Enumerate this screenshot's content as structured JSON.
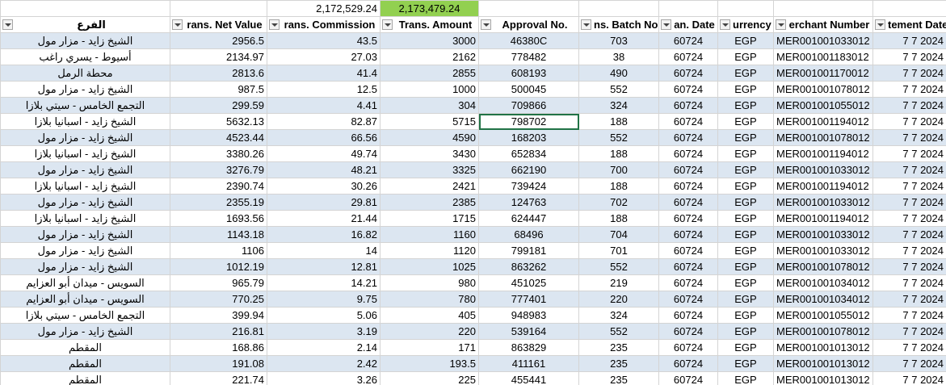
{
  "totals": [
    "2,172,529.24",
    "2,173,479.24"
  ],
  "table": {
    "headers": [
      "الفرع",
      "rans. Net Value",
      "rans. Commission",
      "Trans. Amount",
      "Approval No.",
      "ns. Batch No.",
      "an. Date",
      "urrency",
      "erchant Number",
      "tement Date"
    ],
    "rows": [
      [
        "الشيخ زايد - مزار مول",
        "2956.5",
        "43.5",
        "3000",
        "46380C",
        "703",
        "60724",
        "EGP",
        "MER001001033012",
        "7 7 2024"
      ],
      [
        "أسيوط - يسري راغب",
        "2134.97",
        "27.03",
        "2162",
        "778482",
        "38",
        "60724",
        "EGP",
        "MER001001183012",
        "7 7 2024"
      ],
      [
        "محطة الرمل",
        "2813.6",
        "41.4",
        "2855",
        "608193",
        "490",
        "60724",
        "EGP",
        "MER001001170012",
        "7 7 2024"
      ],
      [
        "الشيخ زايد - مزار مول",
        "987.5",
        "12.5",
        "1000",
        "500045",
        "552",
        "60724",
        "EGP",
        "MER001001078012",
        "7 7 2024"
      ],
      [
        "التجمع الخامس - سيتي بلازا",
        "299.59",
        "4.41",
        "304",
        "709866",
        "324",
        "60724",
        "EGP",
        "MER001001055012",
        "7 7 2024"
      ],
      [
        "الشيخ زايد - اسبانيا بلازا",
        "5632.13",
        "82.87",
        "5715",
        "798702",
        "188",
        "60724",
        "EGP",
        "MER001001194012",
        "7 7 2024"
      ],
      [
        "الشيخ زايد - مزار مول",
        "4523.44",
        "66.56",
        "4590",
        "168203",
        "552",
        "60724",
        "EGP",
        "MER001001078012",
        "7 7 2024"
      ],
      [
        "الشيخ زايد - اسبانيا بلازا",
        "3380.26",
        "49.74",
        "3430",
        "652834",
        "188",
        "60724",
        "EGP",
        "MER001001194012",
        "7 7 2024"
      ],
      [
        "الشيخ زايد - مزار مول",
        "3276.79",
        "48.21",
        "3325",
        "662190",
        "700",
        "60724",
        "EGP",
        "MER001001033012",
        "7 7 2024"
      ],
      [
        "الشيخ زايد - اسبانيا بلازا",
        "2390.74",
        "30.26",
        "2421",
        "739424",
        "188",
        "60724",
        "EGP",
        "MER001001194012",
        "7 7 2024"
      ],
      [
        "الشيخ زايد - مزار مول",
        "2355.19",
        "29.81",
        "2385",
        "124763",
        "702",
        "60724",
        "EGP",
        "MER001001033012",
        "7 7 2024"
      ],
      [
        "الشيخ زايد - اسبانيا بلازا",
        "1693.56",
        "21.44",
        "1715",
        "624447",
        "188",
        "60724",
        "EGP",
        "MER001001194012",
        "7 7 2024"
      ],
      [
        "الشيخ زايد - مزار مول",
        "1143.18",
        "16.82",
        "1160",
        "68496",
        "704",
        "60724",
        "EGP",
        "MER001001033012",
        "7 7 2024"
      ],
      [
        "الشيخ زايد - مزار مول",
        "1106",
        "14",
        "1120",
        "799181",
        "701",
        "60724",
        "EGP",
        "MER001001033012",
        "7 7 2024"
      ],
      [
        "الشيخ زايد - مزار مول",
        "1012.19",
        "12.81",
        "1025",
        "863262",
        "552",
        "60724",
        "EGP",
        "MER001001078012",
        "7 7 2024"
      ],
      [
        "السويس - ميدان أبو العزايم",
        "965.79",
        "14.21",
        "980",
        "451025",
        "219",
        "60724",
        "EGP",
        "MER001001034012",
        "7 7 2024"
      ],
      [
        "السويس - ميدان أبو العزايم",
        "770.25",
        "9.75",
        "780",
        "777401",
        "220",
        "60724",
        "EGP",
        "MER001001034012",
        "7 7 2024"
      ],
      [
        "التجمع الخامس - سيتي بلازا",
        "399.94",
        "5.06",
        "405",
        "948983",
        "324",
        "60724",
        "EGP",
        "MER001001055012",
        "7 7 2024"
      ],
      [
        "الشيخ زايد - مزار مول",
        "216.81",
        "3.19",
        "220",
        "539164",
        "552",
        "60724",
        "EGP",
        "MER001001078012",
        "7 7 2024"
      ],
      [
        "المقطم",
        "168.86",
        "2.14",
        "171",
        "863829",
        "235",
        "60724",
        "EGP",
        "MER001001013012",
        "7 7 2024"
      ],
      [
        "المقطم",
        "191.08",
        "2.42",
        "193.5",
        "411161",
        "235",
        "60724",
        "EGP",
        "MER001001013012",
        "7 7 2024"
      ],
      [
        "المقطم",
        "221.74",
        "3.26",
        "225",
        "455441",
        "235",
        "60724",
        "EGP",
        "MER001001013012",
        "7 7 2024"
      ]
    ]
  }
}
